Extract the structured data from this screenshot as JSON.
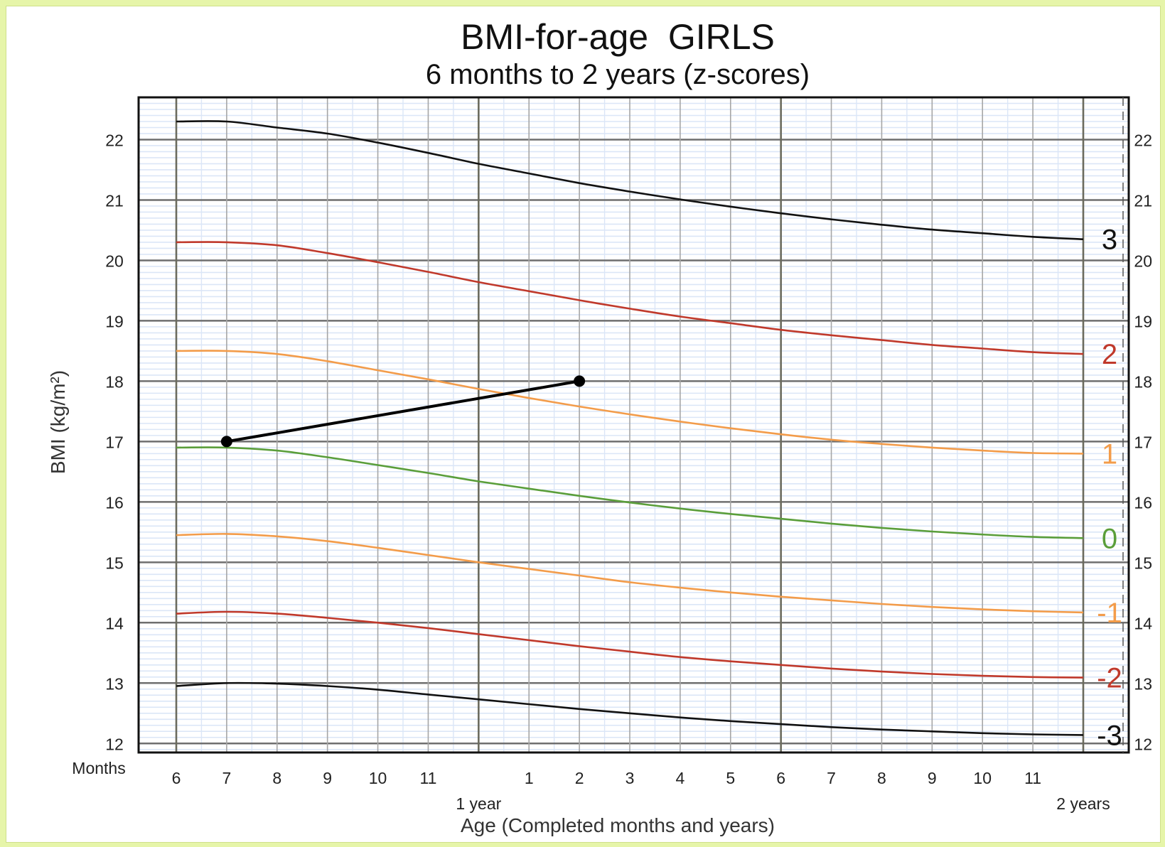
{
  "chart_data": {
    "type": "line",
    "title": "BMI-for-age  GIRLS",
    "subtitle": "6 months to 2 years (z-scores)",
    "xlabel": "Age (Completed months and years)",
    "ylabel": "BMI (kg/m²)",
    "x_unit_label": "Months",
    "xlim": [
      6,
      24
    ],
    "ylim": [
      11.85,
      22.7
    ],
    "grid": true,
    "x_ticks": [
      {
        "x": 6,
        "label": "6"
      },
      {
        "x": 7,
        "label": "7"
      },
      {
        "x": 8,
        "label": "8"
      },
      {
        "x": 9,
        "label": "9"
      },
      {
        "x": 10,
        "label": "10"
      },
      {
        "x": 11,
        "label": "11"
      },
      {
        "x": 13,
        "label": "1"
      },
      {
        "x": 14,
        "label": "2"
      },
      {
        "x": 15,
        "label": "3"
      },
      {
        "x": 16,
        "label": "4"
      },
      {
        "x": 17,
        "label": "5"
      },
      {
        "x": 18,
        "label": "6"
      },
      {
        "x": 19,
        "label": "7"
      },
      {
        "x": 20,
        "label": "8"
      },
      {
        "x": 21,
        "label": "9"
      },
      {
        "x": 22,
        "label": "10"
      },
      {
        "x": 23,
        "label": "11"
      }
    ],
    "year_labels": [
      {
        "x": 12,
        "label": "1 year"
      },
      {
        "x": 24,
        "label": "2 years"
      }
    ],
    "y_ticks": [
      12,
      13,
      14,
      15,
      16,
      17,
      18,
      19,
      20,
      21,
      22
    ],
    "x": [
      6,
      7,
      8,
      9,
      10,
      11,
      12,
      13,
      14,
      15,
      16,
      17,
      18,
      19,
      20,
      21,
      22,
      23,
      24
    ],
    "series": [
      {
        "name": "3",
        "color": "#111111",
        "values": [
          22.3,
          22.3,
          22.2,
          22.1,
          21.95,
          21.78,
          21.6,
          21.44,
          21.28,
          21.14,
          21.01,
          20.89,
          20.78,
          20.68,
          20.59,
          20.51,
          20.45,
          20.39,
          20.35
        ]
      },
      {
        "name": "2",
        "color": "#c0392b",
        "values": [
          20.3,
          20.3,
          20.25,
          20.12,
          19.97,
          19.81,
          19.64,
          19.49,
          19.34,
          19.2,
          19.07,
          18.96,
          18.85,
          18.76,
          18.68,
          18.6,
          18.54,
          18.48,
          18.45
        ]
      },
      {
        "name": "1",
        "color": "#f39c4a",
        "values": [
          18.5,
          18.5,
          18.45,
          18.33,
          18.18,
          18.03,
          17.87,
          17.72,
          17.58,
          17.45,
          17.33,
          17.22,
          17.12,
          17.03,
          16.96,
          16.9,
          16.85,
          16.81,
          16.8
        ]
      },
      {
        "name": "0",
        "color": "#5a9e3a",
        "values": [
          16.9,
          16.9,
          16.85,
          16.74,
          16.61,
          16.48,
          16.34,
          16.22,
          16.1,
          15.99,
          15.89,
          15.8,
          15.72,
          15.64,
          15.57,
          15.51,
          15.46,
          15.42,
          15.4
        ]
      },
      {
        "name": "-1",
        "color": "#f39c4a",
        "values": [
          15.45,
          15.47,
          15.43,
          15.35,
          15.24,
          15.12,
          15.0,
          14.89,
          14.78,
          14.67,
          14.58,
          14.5,
          14.43,
          14.37,
          14.31,
          14.26,
          14.22,
          14.19,
          14.17
        ]
      },
      {
        "name": "-2",
        "color": "#c0392b",
        "values": [
          14.15,
          14.18,
          14.15,
          14.08,
          14.0,
          13.91,
          13.81,
          13.71,
          13.61,
          13.52,
          13.43,
          13.36,
          13.3,
          13.24,
          13.19,
          13.15,
          13.12,
          13.1,
          13.09
        ]
      },
      {
        "name": "-3",
        "color": "#111111",
        "values": [
          12.95,
          13.0,
          12.99,
          12.95,
          12.89,
          12.81,
          12.73,
          12.65,
          12.57,
          12.5,
          12.43,
          12.37,
          12.32,
          12.27,
          12.23,
          12.2,
          12.17,
          12.15,
          12.14
        ]
      }
    ],
    "patient_points": [
      {
        "x": 7,
        "y": 17.0
      },
      {
        "x": 14,
        "y": 18.0
      }
    ]
  }
}
